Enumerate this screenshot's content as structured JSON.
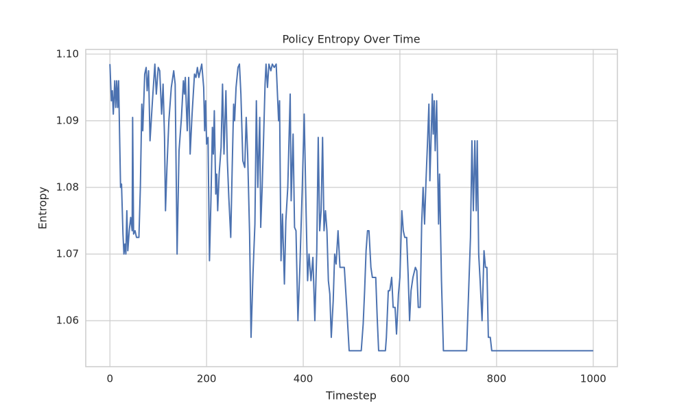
{
  "chart_data": {
    "type": "line",
    "title": "Policy Entropy Over Time",
    "x_label": "Timestep",
    "y_label": "Entropy",
    "color": "#4c72b0",
    "grid": true,
    "x": [
      0,
      3,
      5,
      7,
      10,
      12,
      14,
      16,
      18,
      22,
      24,
      27,
      29,
      31,
      33,
      35,
      37,
      40,
      43,
      46,
      47,
      49,
      52,
      55,
      60,
      63,
      66,
      68,
      72,
      75,
      77,
      80,
      83,
      88,
      93,
      96,
      100,
      103,
      107,
      110,
      113,
      115,
      118,
      122,
      127,
      132,
      135,
      139,
      143,
      148,
      152,
      154,
      156,
      160,
      163,
      166,
      170,
      175,
      178,
      181,
      184,
      187,
      190,
      194,
      196,
      198,
      200,
      203,
      206,
      209,
      212,
      214,
      216,
      219,
      221,
      223,
      226,
      230,
      233,
      236,
      240,
      243,
      246,
      250,
      253,
      256,
      258,
      261,
      265,
      268,
      271,
      275,
      279,
      282,
      285,
      289,
      292,
      296,
      300,
      303,
      306,
      310,
      312,
      315,
      318,
      321,
      323,
      326,
      329,
      333,
      336,
      340,
      344,
      349,
      351,
      354,
      357,
      361,
      364,
      368,
      373,
      375,
      379,
      382,
      385,
      389,
      393,
      398,
      402,
      406,
      409,
      412,
      416,
      420,
      424,
      428,
      431,
      434,
      437,
      440,
      443,
      446,
      449,
      452,
      455,
      458,
      462,
      465,
      468,
      472,
      476,
      480,
      485,
      490,
      495,
      500,
      520,
      524,
      527,
      530,
      533,
      536,
      540,
      543,
      547,
      550,
      553,
      556,
      560,
      565,
      570,
      572,
      576,
      579,
      583,
      586,
      590,
      593,
      597,
      600,
      604,
      607,
      610,
      614,
      617,
      620,
      623,
      627,
      632,
      635,
      638,
      642,
      645,
      648,
      651,
      654,
      657,
      660,
      662,
      665,
      667,
      669,
      671,
      673,
      676,
      680,
      682,
      686,
      690,
      695,
      720,
      738,
      742,
      746,
      749,
      752,
      755,
      758,
      760,
      763,
      766,
      770,
      774,
      777,
      780,
      783,
      787,
      790,
      800,
      1000
    ],
    "values": [
      1.0985,
      1.093,
      1.0945,
      1.091,
      1.096,
      1.092,
      1.096,
      1.092,
      1.096,
      1.08,
      1.0805,
      1.073,
      1.07,
      1.0715,
      1.07,
      1.0765,
      1.0705,
      1.0735,
      1.0755,
      1.0735,
      1.0905,
      1.073,
      1.0735,
      1.0725,
      1.0725,
      1.08,
      1.0925,
      1.0885,
      1.097,
      1.098,
      1.0945,
      1.0975,
      1.087,
      1.093,
      1.0985,
      1.094,
      1.098,
      1.0975,
      1.091,
      1.0955,
      1.0875,
      1.0765,
      1.083,
      1.09,
      1.095,
      1.0975,
      1.0955,
      1.07,
      1.0855,
      1.0905,
      1.096,
      1.094,
      1.0965,
      1.0885,
      1.0965,
      1.085,
      1.091,
      1.097,
      1.0965,
      1.098,
      1.0965,
      1.0975,
      1.0985,
      1.095,
      1.0885,
      1.093,
      1.0865,
      1.0875,
      1.069,
      1.078,
      1.089,
      1.085,
      1.0915,
      1.079,
      1.082,
      1.0765,
      1.082,
      1.086,
      1.0955,
      1.085,
      1.0945,
      1.084,
      1.0785,
      1.0725,
      1.083,
      1.0925,
      1.09,
      1.095,
      1.098,
      1.0985,
      1.094,
      1.084,
      1.083,
      1.0905,
      1.085,
      1.073,
      1.0575,
      1.067,
      1.0745,
      1.093,
      1.08,
      1.0905,
      1.074,
      1.08,
      1.0875,
      1.0955,
      1.0985,
      1.095,
      1.0985,
      1.0975,
      1.0985,
      1.098,
      1.0985,
      1.09,
      1.093,
      1.069,
      1.076,
      1.0655,
      1.075,
      1.08,
      1.094,
      1.078,
      1.088,
      1.074,
      1.0735,
      1.06,
      1.068,
      1.08,
      1.091,
      1.076,
      1.066,
      1.07,
      1.066,
      1.0695,
      1.06,
      1.0705,
      1.0875,
      1.0735,
      1.0765,
      1.0875,
      1.0735,
      1.0765,
      1.0735,
      1.066,
      1.064,
      1.0575,
      1.063,
      1.07,
      1.0685,
      1.0735,
      1.068,
      1.068,
      1.068,
      1.062,
      1.0555,
      1.0555,
      1.0555,
      1.0595,
      1.0645,
      1.0705,
      1.0735,
      1.0735,
      1.068,
      1.0665,
      1.0665,
      1.0665,
      1.0605,
      1.0555,
      1.0555,
      1.0555,
      1.0555,
      1.0575,
      1.0645,
      1.0645,
      1.0665,
      1.062,
      1.062,
      1.058,
      1.064,
      1.0665,
      1.0765,
      1.0735,
      1.0725,
      1.0725,
      1.067,
      1.06,
      1.0645,
      1.0665,
      1.068,
      1.0675,
      1.062,
      1.062,
      1.0745,
      1.08,
      1.0745,
      1.081,
      1.0865,
      1.0925,
      1.081,
      1.0885,
      1.094,
      1.088,
      1.093,
      1.0855,
      1.093,
      1.0745,
      1.082,
      1.066,
      1.0555,
      1.0555,
      1.0555,
      1.0555,
      1.064,
      1.0725,
      1.087,
      1.0765,
      1.087,
      1.0765,
      1.087,
      1.07,
      1.066,
      1.06,
      1.0705,
      1.068,
      1.068,
      1.0575,
      1.0575,
      1.0555,
      1.0555,
      1.0555
    ],
    "xlim": [
      -50,
      1050
    ],
    "ylim": [
      1.0531,
      1.1007
    ],
    "xticks": [
      0,
      200,
      400,
      600,
      800,
      1000
    ],
    "yticks": [
      1.06,
      1.07,
      1.08,
      1.09,
      {
        "value": 1.1,
        "label": "1.10"
      }
    ]
  }
}
